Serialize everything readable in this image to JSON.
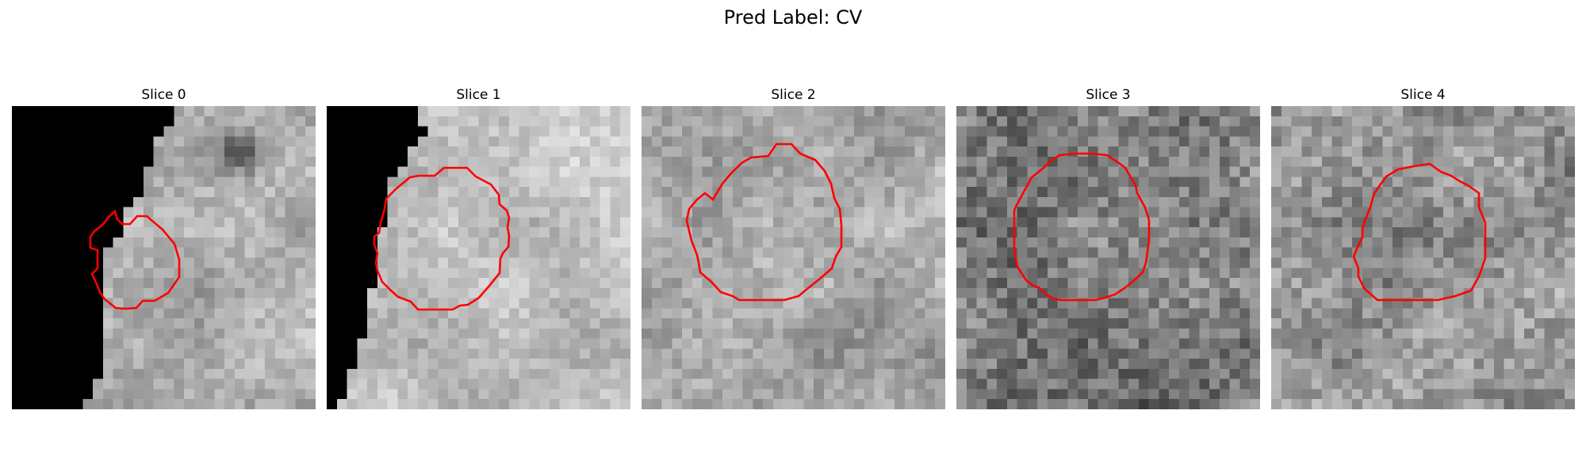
{
  "title": "Pred Label: CV",
  "contour_color": "#ff0000",
  "panels": [
    {
      "label": "Slice 0",
      "mask": "left-edge-zero",
      "mean_gray": 175,
      "contrast": 30,
      "noise": 22,
      "dark_blob": true
    },
    {
      "label": "Slice 1",
      "mask": "left-edge-zero",
      "mean_gray": 190,
      "contrast": 22,
      "noise": 20,
      "dark_blob": false
    },
    {
      "label": "Slice 2",
      "mask": "none",
      "mean_gray": 165,
      "contrast": 28,
      "noise": 24,
      "dark_blob": false
    },
    {
      "label": "Slice 3",
      "mask": "none",
      "mean_gray": 120,
      "contrast": 26,
      "noise": 38,
      "dark_blob": false
    },
    {
      "label": "Slice 4",
      "mask": "none",
      "mean_gray": 150,
      "contrast": 28,
      "noise": 34,
      "dark_blob": false
    }
  ]
}
